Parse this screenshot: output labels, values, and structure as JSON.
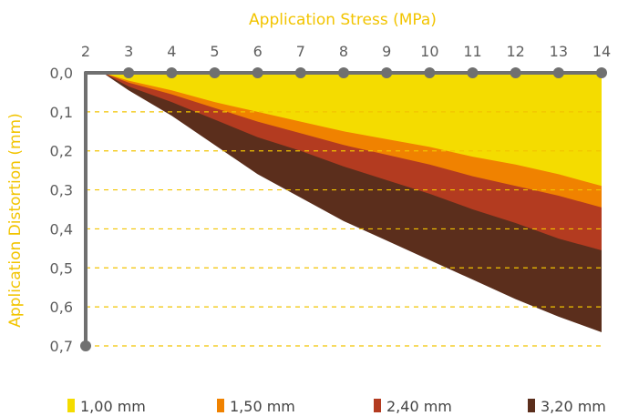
{
  "chart_data": {
    "type": "area",
    "title": "",
    "xlabel": "Application  Stress (MPa)",
    "ylabel": "Application Distortion (mm)",
    "x_ticks": [
      "2",
      "3",
      "4",
      "5",
      "6",
      "7",
      "8",
      "9",
      "10",
      "11",
      "12",
      "13",
      "14"
    ],
    "y_ticks": [
      "0,0",
      "0,1",
      "0,2",
      "0,3",
      "0,4",
      "0,5",
      "0,6",
      "0,7"
    ],
    "xlim": [
      2,
      14
    ],
    "ylim": [
      0,
      0.7
    ],
    "y_inverted": true,
    "grid": "horizontal dashed",
    "legend_position": "bottom",
    "x": [
      2.4,
      3,
      4,
      5,
      6,
      7,
      8,
      9,
      10,
      11,
      12,
      13,
      14
    ],
    "series": [
      {
        "name": "1,00 mm",
        "color": "#f4dc00",
        "values": [
          0.0,
          0.02,
          0.045,
          0.075,
          0.1,
          0.125,
          0.15,
          0.17,
          0.19,
          0.215,
          0.235,
          0.26,
          0.29
        ]
      },
      {
        "name": "1,50 mm",
        "color": "#f08200",
        "values": [
          0.0,
          0.025,
          0.055,
          0.09,
          0.125,
          0.155,
          0.185,
          0.21,
          0.235,
          0.265,
          0.29,
          0.315,
          0.345
        ]
      },
      {
        "name": "2,40 mm",
        "color": "#b33b20",
        "values": [
          0.0,
          0.035,
          0.075,
          0.12,
          0.165,
          0.2,
          0.24,
          0.275,
          0.31,
          0.35,
          0.385,
          0.425,
          0.455
        ]
      },
      {
        "name": "3,20 mm",
        "color": "#5b2e1c",
        "values": [
          0.0,
          0.045,
          0.11,
          0.185,
          0.26,
          0.32,
          0.38,
          0.43,
          0.48,
          0.53,
          0.58,
          0.625,
          0.665
        ]
      }
    ]
  }
}
